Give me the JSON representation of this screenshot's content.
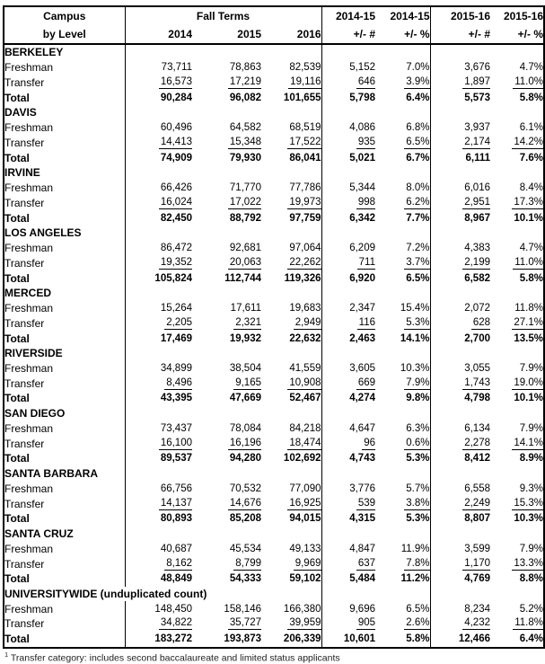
{
  "header": {
    "col_line1": "Campus",
    "col_line2": "by Level",
    "fall_terms": "Fall Terms",
    "years": [
      "2014",
      "2015",
      "2016"
    ],
    "groups": [
      {
        "period": "2014-15",
        "num_label": "+/- #",
        "pct_label": "+/- %"
      },
      {
        "period": "2015-16",
        "num_label": "+/- #",
        "pct_label": "+/- %"
      }
    ]
  },
  "sections": [
    {
      "campus": "BERKELEY",
      "rows": [
        {
          "level": "Freshman",
          "style": "plain",
          "values": [
            "73,711",
            "78,863",
            "82,539",
            "5,152",
            "7.0%",
            "3,676",
            "4.7%"
          ]
        },
        {
          "level": "Transfer",
          "style": "underline",
          "values": [
            "16,573",
            "17,219",
            "19,116",
            "646",
            "3.9%",
            "1,897",
            "11.0%"
          ]
        },
        {
          "level": "Total",
          "style": "total",
          "values": [
            "90,284",
            "96,082",
            "101,655",
            "5,798",
            "6.4%",
            "5,573",
            "5.8%"
          ]
        }
      ]
    },
    {
      "campus": "DAVIS",
      "rows": [
        {
          "level": "Freshman",
          "style": "plain",
          "values": [
            "60,496",
            "64,582",
            "68,519",
            "4,086",
            "6.8%",
            "3,937",
            "6.1%"
          ]
        },
        {
          "level": "Transfer",
          "style": "underline",
          "values": [
            "14,413",
            "15,348",
            "17,522",
            "935",
            "6.5%",
            "2,174",
            "14.2%"
          ]
        },
        {
          "level": "Total",
          "style": "total",
          "values": [
            "74,909",
            "79,930",
            "86,041",
            "5,021",
            "6.7%",
            "6,111",
            "7.6%"
          ]
        }
      ]
    },
    {
      "campus": "IRVINE",
      "rows": [
        {
          "level": "Freshman",
          "style": "plain",
          "values": [
            "66,426",
            "71,770",
            "77,786",
            "5,344",
            "8.0%",
            "6,016",
            "8.4%"
          ]
        },
        {
          "level": "Transfer",
          "style": "underline",
          "values": [
            "16,024",
            "17,022",
            "19,973",
            "998",
            "6.2%",
            "2,951",
            "17.3%"
          ]
        },
        {
          "level": "Total",
          "style": "total",
          "values": [
            "82,450",
            "88,792",
            "97,759",
            "6,342",
            "7.7%",
            "8,967",
            "10.1%"
          ]
        }
      ]
    },
    {
      "campus": "LOS ANGELES",
      "rows": [
        {
          "level": "Freshman",
          "style": "plain",
          "values": [
            "86,472",
            "92,681",
            "97,064",
            "6,209",
            "7.2%",
            "4,383",
            "4.7%"
          ]
        },
        {
          "level": "Transfer",
          "style": "underline",
          "values": [
            "19,352",
            "20,063",
            "22,262",
            "711",
            "3.7%",
            "2,199",
            "11.0%"
          ]
        },
        {
          "level": "Total",
          "style": "total",
          "values": [
            "105,824",
            "112,744",
            "119,326",
            "6,920",
            "6.5%",
            "6,582",
            "5.8%"
          ]
        }
      ]
    },
    {
      "campus": "MERCED",
      "rows": [
        {
          "level": "Freshman",
          "style": "plain",
          "values": [
            "15,264",
            "17,611",
            "19,683",
            "2,347",
            "15.4%",
            "2,072",
            "11.8%"
          ]
        },
        {
          "level": "Transfer",
          "style": "underline",
          "values": [
            "2,205",
            "2,321",
            "2,949",
            "116",
            "5.3%",
            "628",
            "27.1%"
          ]
        },
        {
          "level": "Total",
          "style": "total",
          "values": [
            "17,469",
            "19,932",
            "22,632",
            "2,463",
            "14.1%",
            "2,700",
            "13.5%"
          ]
        }
      ]
    },
    {
      "campus": "RIVERSIDE",
      "rows": [
        {
          "level": "Freshman",
          "style": "plain",
          "values": [
            "34,899",
            "38,504",
            "41,559",
            "3,605",
            "10.3%",
            "3,055",
            "7.9%"
          ]
        },
        {
          "level": "Transfer",
          "style": "underline",
          "values": [
            "8,496",
            "9,165",
            "10,908",
            "669",
            "7.9%",
            "1,743",
            "19.0%"
          ]
        },
        {
          "level": "Total",
          "style": "total",
          "values": [
            "43,395",
            "47,669",
            "52,467",
            "4,274",
            "9.8%",
            "4,798",
            "10.1%"
          ]
        }
      ]
    },
    {
      "campus": "SAN DIEGO",
      "rows": [
        {
          "level": "Freshman",
          "style": "plain",
          "values": [
            "73,437",
            "78,084",
            "84,218",
            "4,647",
            "6.3%",
            "6,134",
            "7.9%"
          ]
        },
        {
          "level": "Transfer",
          "style": "underline",
          "values": [
            "16,100",
            "16,196",
            "18,474",
            "96",
            "0.6%",
            "2,278",
            "14.1%"
          ]
        },
        {
          "level": "Total",
          "style": "total",
          "values": [
            "89,537",
            "94,280",
            "102,692",
            "4,743",
            "5.3%",
            "8,412",
            "8.9%"
          ]
        }
      ]
    },
    {
      "campus": "SANTA BARBARA",
      "rows": [
        {
          "level": "Freshman",
          "style": "plain",
          "values": [
            "66,756",
            "70,532",
            "77,090",
            "3,776",
            "5.7%",
            "6,558",
            "9.3%"
          ]
        },
        {
          "level": "Transfer",
          "style": "underline",
          "values": [
            "14,137",
            "14,676",
            "16,925",
            "539",
            "3.8%",
            "2,249",
            "15.3%"
          ]
        },
        {
          "level": "Total",
          "style": "total",
          "values": [
            "80,893",
            "85,208",
            "94,015",
            "4,315",
            "5.3%",
            "8,807",
            "10.3%"
          ]
        }
      ]
    },
    {
      "campus": "SANTA CRUZ",
      "rows": [
        {
          "level": "Freshman",
          "style": "plain",
          "values": [
            "40,687",
            "45,534",
            "49,133",
            "4,847",
            "11.9%",
            "3,599",
            "7.9%"
          ]
        },
        {
          "level": "Transfer",
          "style": "underline",
          "values": [
            "8,162",
            "8,799",
            "9,969",
            "637",
            "7.8%",
            "1,170",
            "13.3%"
          ]
        },
        {
          "level": "Total",
          "style": "total",
          "values": [
            "48,849",
            "54,333",
            "59,102",
            "5,484",
            "11.2%",
            "4,769",
            "8.8%"
          ]
        }
      ]
    },
    {
      "campus": "UNIVERSITYWIDE (unduplicated count)",
      "full_width": true,
      "rows": [
        {
          "level": "Freshman",
          "style": "plain",
          "values": [
            "148,450",
            "158,146",
            "166,380",
            "9,696",
            "6.5%",
            "8,234",
            "5.2%"
          ]
        },
        {
          "level": "Transfer",
          "style": "underline",
          "values": [
            "34,822",
            "35,727",
            "39,959",
            "905",
            "2.6%",
            "4,232",
            "11.8%"
          ]
        },
        {
          "level": "Total",
          "style": "total",
          "values": [
            "183,272",
            "193,873",
            "206,339",
            "10,601",
            "5.8%",
            "12,466",
            "6.4%"
          ]
        }
      ]
    }
  ],
  "footnote": {
    "marker": "1",
    "text": " Transfer category: includes second baccalaureate and limited status applicants"
  }
}
